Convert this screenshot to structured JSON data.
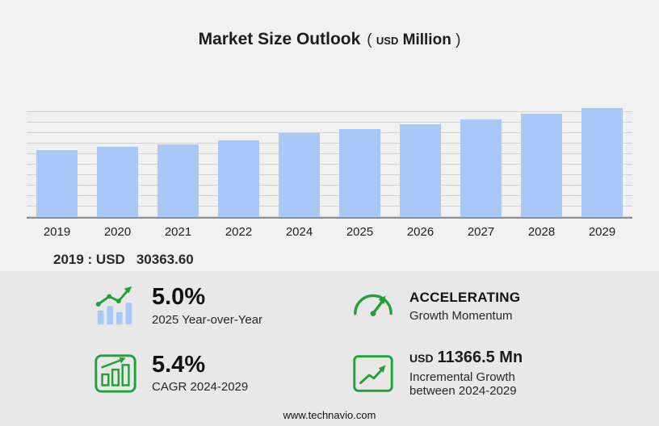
{
  "title": {
    "main": "Market Size Outlook",
    "open_paren": "(",
    "unit_currency": "USD",
    "unit_scale": "Million",
    "close_paren": ")"
  },
  "chart_data": {
    "type": "bar",
    "title": "Market Size Outlook (USD Million)",
    "categories": [
      "2019",
      "2020",
      "2021",
      "2022",
      "2024",
      "2025",
      "2026",
      "2027",
      "2028",
      "2029"
    ],
    "values": [
      30363.6,
      31500,
      32900,
      34700,
      37790,
      39680,
      41820,
      44080,
      46460,
      49154
    ],
    "xlabel": "",
    "ylabel": "",
    "ylim": [
      0,
      52000
    ],
    "grid": true,
    "legend": "none",
    "bar_color": "#a9c7f7"
  },
  "annotation": {
    "prefix": "2019 : USD",
    "value": "30363.60"
  },
  "stats": {
    "yoy": {
      "value": "5.0%",
      "caption": "2025 Year-over-Year"
    },
    "momentum": {
      "value": "ACCELERATING",
      "caption": "Growth Momentum"
    },
    "cagr": {
      "value": "5.4%",
      "caption": "CAGR 2024-2029"
    },
    "incremental": {
      "currency": "USD",
      "value": "11366.5 Mn",
      "caption": "Incremental Growth between 2024-2029"
    }
  },
  "footer": {
    "url": "www.technavio.com"
  },
  "colors": {
    "accent_green": "#21a038",
    "bar_blue": "#a9c7f7",
    "background": "#f2f1f1",
    "panel": "#e9e8e8"
  }
}
